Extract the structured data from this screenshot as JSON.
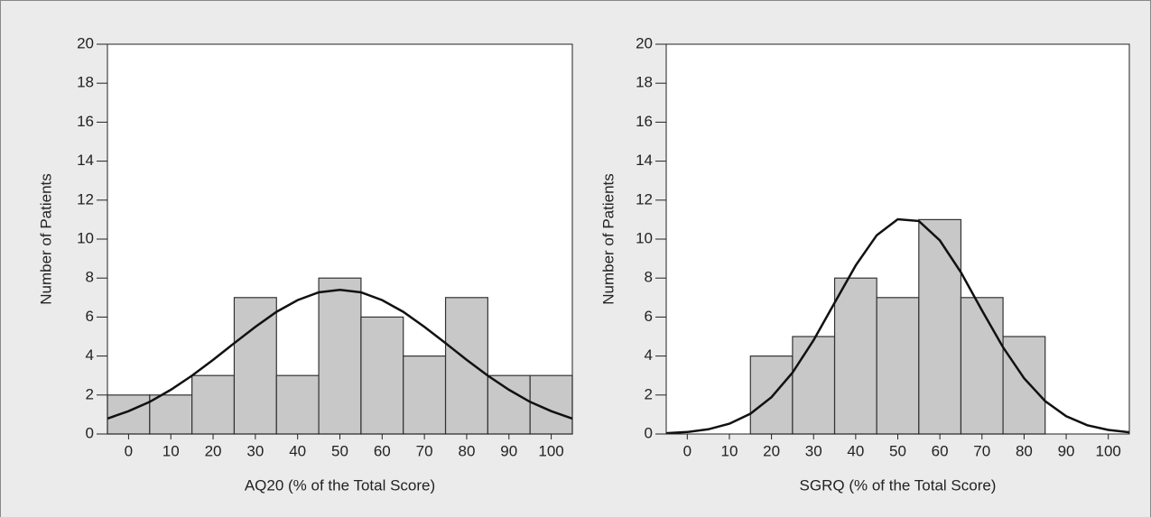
{
  "chart_data": [
    {
      "type": "histogram",
      "x_label": "AQ20 (% of the Total Score)",
      "y_label": "Number of Patients",
      "bins": [
        -5,
        5,
        15,
        25,
        35,
        45,
        55,
        65,
        75,
        85,
        95,
        105
      ],
      "values": [
        2,
        2,
        3,
        7,
        3,
        8,
        6,
        4,
        7,
        3,
        3
      ],
      "color": "#c8c8c8",
      "curve": {
        "x": [
          -5,
          0,
          5,
          10,
          15,
          20,
          25,
          30,
          35,
          40,
          45,
          50,
          55,
          60,
          65,
          70,
          75,
          80,
          85,
          90,
          95,
          100,
          105
        ],
        "values": [
          0.79,
          1.17,
          1.65,
          2.27,
          2.99,
          3.8,
          4.66,
          5.5,
          6.27,
          6.87,
          7.27,
          7.4,
          7.27,
          6.87,
          6.27,
          5.5,
          4.66,
          3.8,
          2.99,
          2.27,
          1.65,
          1.17,
          0.79
        ]
      },
      "xlim": [
        -5,
        105
      ],
      "xticks": [
        0,
        10,
        20,
        30,
        40,
        50,
        60,
        70,
        80,
        90,
        100
      ],
      "ylim": [
        0,
        20
      ],
      "yticks": [
        0,
        2,
        4,
        6,
        8,
        10,
        12,
        14,
        16,
        18,
        20
      ],
      "grid": false
    },
    {
      "type": "histogram",
      "x_label": "SGRQ (% of the Total Score)",
      "y_label": "Number of Patients",
      "bins": [
        15,
        25,
        35,
        45,
        55,
        65,
        75,
        85
      ],
      "values": [
        4,
        5,
        8,
        7,
        11,
        7,
        5
      ],
      "color": "#c8c8c8",
      "curve": {
        "x": [
          -5,
          0,
          5,
          10,
          15,
          20,
          25,
          30,
          35,
          40,
          45,
          50,
          55,
          60,
          65,
          70,
          75,
          80,
          85,
          90,
          95,
          100,
          105
        ],
        "values": [
          0.04,
          0.1,
          0.24,
          0.53,
          1.04,
          1.89,
          3.15,
          4.81,
          6.73,
          8.65,
          10.2,
          11.02,
          10.93,
          9.93,
          8.29,
          6.34,
          4.45,
          2.86,
          1.69,
          0.91,
          0.45,
          0.21,
          0.09
        ]
      },
      "xlim": [
        -5,
        105
      ],
      "xticks": [
        0,
        10,
        20,
        30,
        40,
        50,
        60,
        70,
        80,
        90,
        100
      ],
      "ylim": [
        0,
        20
      ],
      "yticks": [
        0,
        2,
        4,
        6,
        8,
        10,
        12,
        14,
        16,
        18,
        20
      ],
      "grid": false
    }
  ]
}
